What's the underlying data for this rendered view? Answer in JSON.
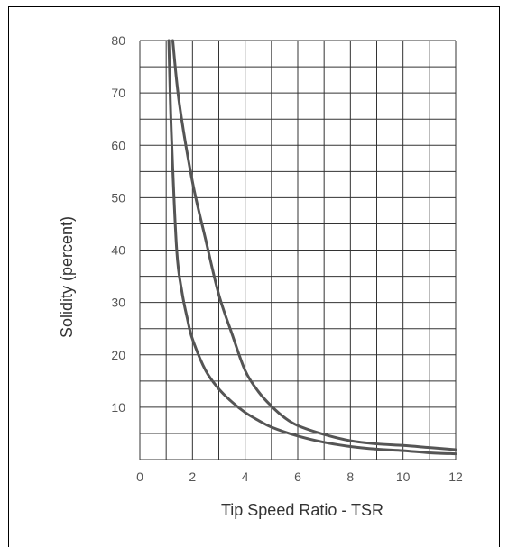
{
  "chart_data": {
    "type": "line",
    "title": "",
    "xlabel": "Tip Speed Ratio - TSR",
    "ylabel": "Solidity (percent)",
    "xlim": [
      0,
      12
    ],
    "ylim": [
      0,
      80
    ],
    "x_tick_labels": [
      "0",
      "2",
      "4",
      "6",
      "8",
      "10",
      "12"
    ],
    "y_tick_labels": [
      "10",
      "20",
      "30",
      "40",
      "50",
      "60",
      "70",
      "80"
    ],
    "grid": true,
    "legend": "none",
    "colors": {
      "grid": "#333333",
      "curve": "#555555",
      "text": "#555555"
    },
    "series": [
      {
        "points": [
          [
            1.1,
            80
          ],
          [
            1.2,
            62
          ],
          [
            1.4,
            40
          ],
          [
            1.6,
            32
          ],
          [
            1.8,
            27
          ],
          [
            2,
            23
          ],
          [
            2.5,
            17
          ],
          [
            3,
            13.5
          ],
          [
            3.5,
            11
          ],
          [
            4,
            9
          ],
          [
            4.5,
            7.5
          ],
          [
            5,
            6.2
          ],
          [
            6,
            4.5
          ],
          [
            7,
            3.3
          ],
          [
            8,
            2.5
          ],
          [
            9,
            2.0
          ],
          [
            10,
            1.7
          ],
          [
            11,
            1.3
          ],
          [
            12,
            1.1
          ]
        ]
      },
      {
        "points": [
          [
            1.25,
            80
          ],
          [
            1.5,
            68
          ],
          [
            2,
            53
          ],
          [
            2.5,
            42
          ],
          [
            3,
            31.5
          ],
          [
            3.5,
            24
          ],
          [
            4,
            17
          ],
          [
            4.5,
            13
          ],
          [
            5,
            10.2
          ],
          [
            5.5,
            8
          ],
          [
            6,
            6.5
          ],
          [
            7,
            4.8
          ],
          [
            8,
            3.6
          ],
          [
            9,
            3.0
          ],
          [
            10,
            2.7
          ],
          [
            11,
            2.3
          ],
          [
            12,
            1.9
          ]
        ]
      }
    ]
  }
}
